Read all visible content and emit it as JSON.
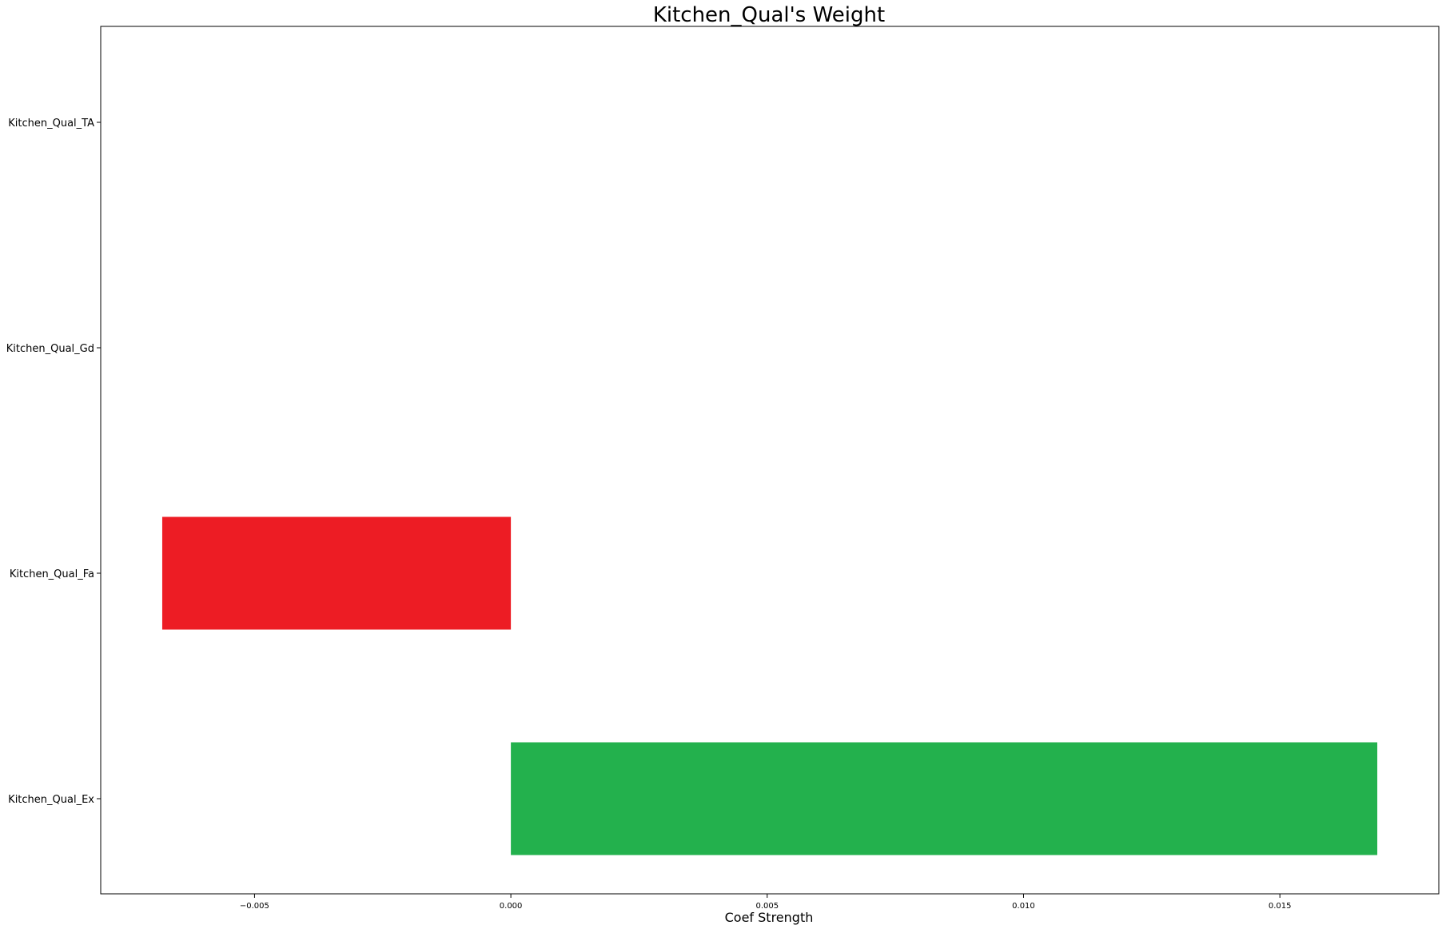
{
  "chart_data": {
    "type": "bar",
    "orientation": "horizontal",
    "title": "Kitchen_Qual's Weight",
    "xlabel": "Coef Strength",
    "ylabel": "",
    "categories": [
      "Kitchen_Qual_Ex",
      "Kitchen_Qual_Fa",
      "Kitchen_Qual_Gd",
      "Kitchen_Qual_TA"
    ],
    "values": [
      0.0169,
      -0.0068,
      0.0,
      0.0
    ],
    "colors": [
      "#23b14d",
      "#ed1c24",
      "#23b14d",
      "#23b14d"
    ],
    "xlim": [
      -0.008,
      0.0181
    ],
    "xticks": [
      -0.005,
      0.0,
      0.005,
      0.01,
      0.015
    ],
    "xtick_labels": [
      "−0.005",
      "0.000",
      "0.005",
      "0.010",
      "0.015"
    ],
    "grid": false,
    "legend": "none"
  }
}
